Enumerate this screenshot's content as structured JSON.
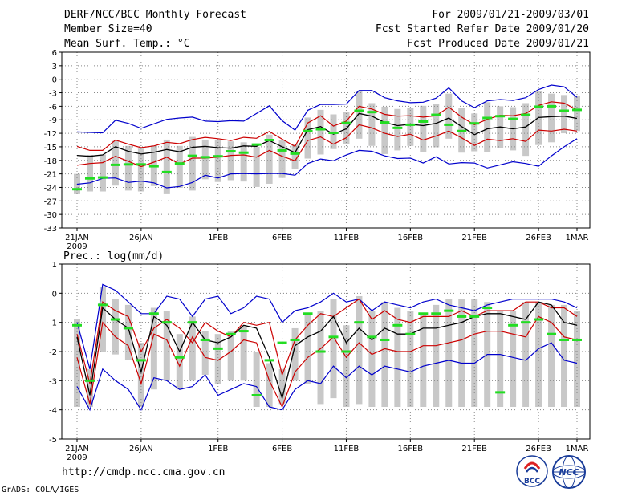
{
  "header": {
    "title": "DERF/NCC/BCC Monthly Forecast",
    "member": "Member Size=40",
    "variable": "Mean Surf. Temp.: °C",
    "period": "For 2009/01/21-2009/03/01",
    "started": "Fcst Started Refer Date 2009/01/20",
    "produced": "Fcst Produced Date 2009/01/21"
  },
  "footer": {
    "url": "http://cmdp.ncc.cma.gov.cn",
    "credit": "GrADS: COLA/IGES",
    "logo_bcc": "BCC",
    "logo_ncc": "NCC"
  },
  "colors": {
    "envelope": "#0000cc",
    "quartile": "#cc0000",
    "mean": "#000000",
    "box": "#c8c8c8",
    "marker": "#22dd22",
    "grid": "#888888"
  },
  "chart_data": [
    {
      "type": "line",
      "title": "Mean Surf. Temp.: °C",
      "ylabel": "°C",
      "ylim": [
        -33,
        6
      ],
      "yticks": [
        6,
        3,
        0,
        -3,
        -6,
        -9,
        -12,
        -15,
        -18,
        -21,
        -24,
        -27,
        -30,
        -33
      ],
      "x_labels": [
        {
          "day": 0,
          "text": "21JAN"
        },
        {
          "day": 5,
          "text": "26JAN"
        },
        {
          "day": 11,
          "text": "1FEB"
        },
        {
          "day": 16,
          "text": "6FEB"
        },
        {
          "day": 21,
          "text": "11FEB"
        },
        {
          "day": 26,
          "text": "16FEB"
        },
        {
          "day": 31,
          "text": "21FEB"
        },
        {
          "day": 36,
          "text": "26FEB"
        },
        {
          "day": 39,
          "text": "1MAR"
        }
      ],
      "year_label": "2009",
      "series": [
        {
          "name": "max",
          "values": [
            -11.7,
            -11.8,
            -11.9,
            -9.1,
            -9.8,
            -10.9,
            -9.9,
            -8.9,
            -8.6,
            -8.4,
            -9.3,
            -9.4,
            -9.2,
            -9.3,
            -7.6,
            -5.9,
            -9.2,
            -11.3,
            -6.9,
            -5.6,
            -5.6,
            -5.5,
            -2.5,
            -2.5,
            -4.1,
            -4.8,
            -5.2,
            -5.1,
            -4.2,
            -1.9,
            -4.8,
            -6.3,
            -4.8,
            -4.5,
            -4.7,
            -4.1,
            -2.3,
            -1.3,
            -1.7,
            -4.0
          ]
        },
        {
          "name": "upper",
          "values": [
            -14.9,
            -15.8,
            -15.8,
            -13.5,
            -14.4,
            -15.2,
            -14.8,
            -14.0,
            -14.3,
            -13.4,
            -12.9,
            -13.2,
            -13.6,
            -12.9,
            -13.1,
            -11.6,
            -13.3,
            -14.9,
            -9.7,
            -8.1,
            -10.4,
            -9.3,
            -6.0,
            -6.6,
            -7.8,
            -8.2,
            -8.1,
            -8.4,
            -8.1,
            -6.2,
            -8.4,
            -10.1,
            -8.9,
            -8.0,
            -8.1,
            -7.6,
            -5.8,
            -5.0,
            -5.3,
            -6.8
          ]
        },
        {
          "name": "mean",
          "values": [
            -16.9,
            -17.1,
            -16.8,
            -15.0,
            -16.0,
            -16.6,
            -16.2,
            -15.6,
            -16.1,
            -15.1,
            -14.9,
            -15.2,
            -15.3,
            -14.8,
            -14.9,
            -13.6,
            -15.0,
            -16.3,
            -11.2,
            -10.5,
            -12.2,
            -11.0,
            -7.6,
            -8.2,
            -9.6,
            -10.3,
            -10.0,
            -10.3,
            -9.8,
            -8.6,
            -10.5,
            -12.3,
            -11.0,
            -10.6,
            -11.0,
            -10.6,
            -8.5,
            -8.3,
            -8.2,
            -8.7
          ]
        },
        {
          "name": "lower",
          "values": [
            -19.1,
            -18.7,
            -18.5,
            -17.1,
            -18.2,
            -19.4,
            -18.4,
            -17.3,
            -18.8,
            -17.5,
            -17.5,
            -17.3,
            -16.9,
            -16.8,
            -17.3,
            -15.8,
            -17.1,
            -18.1,
            -13.6,
            -12.8,
            -14.4,
            -13.0,
            -10.1,
            -10.8,
            -12.0,
            -12.7,
            -12.2,
            -13.5,
            -12.6,
            -11.5,
            -13.0,
            -14.7,
            -13.3,
            -13.6,
            -13.2,
            -13.8,
            -11.3,
            -11.5,
            -11.1,
            -11.5
          ]
        },
        {
          "name": "min",
          "values": [
            -23.3,
            -23.0,
            -22.0,
            -21.9,
            -22.9,
            -22.6,
            -23.0,
            -24.1,
            -23.8,
            -22.9,
            -21.3,
            -21.9,
            -21.0,
            -20.9,
            -21.0,
            -20.9,
            -20.9,
            -21.3,
            -18.7,
            -17.7,
            -18.1,
            -16.8,
            -15.8,
            -16.0,
            -17.0,
            -17.6,
            -17.5,
            -18.6,
            -17.2,
            -18.8,
            -18.5,
            -18.6,
            -19.7,
            -19.0,
            -18.3,
            -18.7,
            -19.3,
            -17.0,
            -15.0,
            -13.2
          ]
        },
        {
          "name": "obs",
          "values": [
            -24.4,
            -22.0,
            -21.8,
            -19.0,
            -18.9,
            -18.9,
            -19.3,
            -20.6,
            -18.7,
            -17.0,
            -17.3,
            -17.1,
            -16.0,
            -16.3,
            -14.5,
            -13.5,
            -15.8,
            -16.5,
            -11.5,
            -11.1,
            -11.9,
            -9.7,
            -7.0,
            -7.3,
            -9.6,
            -10.8,
            -10.1,
            -9.4,
            -7.9,
            -10.1,
            -11.5,
            -9.8,
            -8.6,
            -8.2,
            -8.8,
            -7.9,
            -6.1,
            -6.0,
            -7.0,
            -6.8
          ]
        }
      ],
      "boxes": [
        [
          -25.5,
          -21.0
        ],
        [
          -24.9,
          -16.8
        ],
        [
          -24.9,
          -16.7
        ],
        [
          -23.6,
          -13.7
        ],
        [
          -24.7,
          -14.8
        ],
        [
          -24.9,
          -15.4
        ],
        [
          -23.7,
          -14.7
        ],
        [
          -25.5,
          -13.4
        ],
        [
          -24.1,
          -14.8
        ],
        [
          -24.7,
          -12.8
        ],
        [
          -22.2,
          -13.4
        ],
        [
          -22.8,
          -13.5
        ],
        [
          -22.4,
          -13.8
        ],
        [
          -22.7,
          -14.0
        ],
        [
          -23.9,
          -15.0
        ],
        [
          -23.2,
          -12.3
        ],
        [
          -21.9,
          -13.6
        ],
        [
          -20.0,
          -14.5
        ],
        [
          -17.6,
          -8.5
        ],
        [
          -16.7,
          -6.8
        ],
        [
          -15.5,
          -7.8
        ],
        [
          -14.4,
          -7.2
        ],
        [
          -13.2,
          -2.6
        ],
        [
          -14.8,
          -5.3
        ],
        [
          -16.6,
          -6.1
        ],
        [
          -15.8,
          -6.6
        ],
        [
          -14.8,
          -6.3
        ],
        [
          -16.1,
          -5.9
        ],
        [
          -15.1,
          -5.5
        ],
        [
          -13.2,
          -3.2
        ],
        [
          -16.3,
          -6.4
        ],
        [
          -16.0,
          -7.6
        ],
        [
          -16.2,
          -5.1
        ],
        [
          -15.2,
          -6.0
        ],
        [
          -15.8,
          -6.2
        ],
        [
          -17.0,
          -5.3
        ],
        [
          -14.6,
          -2.6
        ],
        [
          -14.0,
          -3.2
        ],
        [
          -12.0,
          -3.5
        ],
        [
          -11.5,
          -3.6
        ]
      ]
    },
    {
      "type": "line",
      "title": "Prec.: log(mm/d)",
      "ylabel": "log(mm/d)",
      "ylim": [
        -5,
        1
      ],
      "yticks": [
        1,
        0,
        -1,
        -2,
        -3,
        -4,
        -5
      ],
      "x_labels": [
        {
          "day": 0,
          "text": "21JAN"
        },
        {
          "day": 5,
          "text": "26JAN"
        },
        {
          "day": 11,
          "text": "1FEB"
        },
        {
          "day": 16,
          "text": "6FEB"
        },
        {
          "day": 21,
          "text": "11FEB"
        },
        {
          "day": 26,
          "text": "16FEB"
        },
        {
          "day": 31,
          "text": "21FEB"
        },
        {
          "day": 36,
          "text": "26FEB"
        },
        {
          "day": 39,
          "text": "1MAR"
        }
      ],
      "year_label": "2009",
      "series": [
        {
          "name": "max",
          "values": [
            -1.0,
            -2.6,
            0.3,
            0.1,
            -0.3,
            -0.7,
            -0.7,
            -0.1,
            -0.2,
            -0.8,
            -0.2,
            -0.1,
            -0.7,
            -0.5,
            -0.1,
            -0.2,
            -1.0,
            -0.6,
            -0.5,
            -0.3,
            0.0,
            -0.3,
            -0.2,
            -0.6,
            -0.3,
            -0.4,
            -0.5,
            -0.3,
            -0.2,
            -0.4,
            -0.5,
            -0.6,
            -0.4,
            -0.3,
            -0.2,
            -0.2,
            -0.2,
            -0.2,
            -0.3,
            -0.5
          ]
        },
        {
          "name": "upper",
          "values": [
            -1.4,
            -3.1,
            -0.3,
            -0.6,
            -0.8,
            -2.0,
            -1.2,
            -0.9,
            -1.2,
            -1.7,
            -1.0,
            -1.3,
            -1.5,
            -1.0,
            -1.1,
            -1.0,
            -2.8,
            -1.6,
            -1.1,
            -0.7,
            -0.8,
            -0.5,
            -0.2,
            -0.9,
            -0.6,
            -0.9,
            -1.0,
            -0.8,
            -0.8,
            -0.8,
            -0.6,
            -0.8,
            -0.6,
            -0.6,
            -0.6,
            -0.3,
            -0.3,
            -0.5,
            -0.5,
            -0.8
          ]
        },
        {
          "name": "mean",
          "values": [
            -1.5,
            -3.5,
            -0.5,
            -0.9,
            -1.2,
            -2.7,
            -0.8,
            -1.1,
            -2.0,
            -1.0,
            -1.6,
            -1.7,
            -1.5,
            -1.1,
            -1.2,
            -2.2,
            -3.6,
            -1.8,
            -1.5,
            -1.3,
            -0.8,
            -1.7,
            -1.2,
            -1.6,
            -1.2,
            -1.4,
            -1.4,
            -1.2,
            -1.2,
            -1.1,
            -1.0,
            -0.8,
            -0.7,
            -0.7,
            -0.8,
            -0.9,
            -0.3,
            -0.4,
            -1.0,
            -1.1
          ]
        },
        {
          "name": "lower",
          "values": [
            -2.2,
            -3.8,
            -1.0,
            -1.5,
            -1.8,
            -3.1,
            -1.4,
            -1.6,
            -2.5,
            -1.5,
            -2.2,
            -2.3,
            -2.0,
            -1.6,
            -1.7,
            -3.0,
            -3.9,
            -2.7,
            -2.2,
            -1.9,
            -1.5,
            -2.2,
            -1.7,
            -2.1,
            -1.9,
            -2.0,
            -2.0,
            -1.8,
            -1.8,
            -1.7,
            -1.6,
            -1.4,
            -1.3,
            -1.3,
            -1.4,
            -1.5,
            -0.8,
            -1.0,
            -1.5,
            -1.6
          ]
        },
        {
          "name": "min",
          "values": [
            -3.2,
            -4.0,
            -2.6,
            -3.0,
            -3.3,
            -4.0,
            -2.9,
            -3.0,
            -3.3,
            -3.2,
            -2.8,
            -3.5,
            -3.3,
            -3.1,
            -3.2,
            -3.9,
            -4.0,
            -3.3,
            -3.0,
            -3.1,
            -2.5,
            -2.9,
            -2.5,
            -2.8,
            -2.5,
            -2.6,
            -2.7,
            -2.5,
            -2.4,
            -2.3,
            -2.4,
            -2.4,
            -2.1,
            -2.1,
            -2.2,
            -2.3,
            -1.9,
            -1.7,
            -2.3,
            -2.4
          ]
        },
        {
          "name": "obs",
          "values": [
            -1.1,
            -3.0,
            -0.4,
            -0.9,
            -1.2,
            -2.3,
            -0.7,
            -1.0,
            -2.2,
            -1.0,
            -1.6,
            -1.9,
            -1.4,
            -1.3,
            -3.5,
            -2.3,
            -1.7,
            -1.6,
            -0.7,
            -2.0,
            -1.5,
            -2.0,
            -1.0,
            -1.5,
            -1.6,
            -1.1,
            -1.4,
            -0.7,
            -0.7,
            -0.6,
            -0.8,
            -0.8,
            -0.5,
            -3.4,
            -1.1,
            -1.0,
            -0.9,
            -1.4,
            -1.6,
            -1.6
          ]
        }
      ],
      "boxes": [
        [
          -3.9,
          -0.9
        ],
        [
          -3.9,
          -2.6
        ],
        [
          -2.0,
          0.2
        ],
        [
          -2.1,
          -0.2
        ],
        [
          -2.3,
          -0.4
        ],
        [
          -3.9,
          -1.7
        ],
        [
          -3.3,
          -0.5
        ],
        [
          -3.0,
          -0.6
        ],
        [
          -3.3,
          -1.4
        ],
        [
          -3.0,
          -0.8
        ],
        [
          -2.8,
          -1.3
        ],
        [
          -3.1,
          -1.4
        ],
        [
          -3.0,
          -1.3
        ],
        [
          -3.0,
          -1.1
        ],
        [
          -3.9,
          -2.0
        ],
        [
          -3.9,
          -2.4
        ],
        [
          -3.8,
          -2.6
        ],
        [
          -3.0,
          -1.2
        ],
        [
          -3.1,
          -0.7
        ],
        [
          -3.8,
          -0.6
        ],
        [
          -3.6,
          -0.2
        ],
        [
          -3.9,
          -1.1
        ],
        [
          -3.8,
          -0.1
        ],
        [
          -3.9,
          -0.6
        ],
        [
          -3.9,
          -0.3
        ],
        [
          -3.9,
          -0.5
        ],
        [
          -3.9,
          -0.6
        ],
        [
          -3.9,
          -0.7
        ],
        [
          -3.9,
          -0.4
        ],
        [
          -3.9,
          -0.2
        ],
        [
          -3.9,
          -0.2
        ],
        [
          -3.9,
          -0.2
        ],
        [
          -3.9,
          -0.3
        ],
        [
          -3.9,
          -0.6
        ],
        [
          -3.9,
          -0.6
        ],
        [
          -3.9,
          -0.3
        ],
        [
          -3.9,
          -0.3
        ],
        [
          -3.9,
          -0.4
        ],
        [
          -3.9,
          -0.4
        ],
        [
          -3.9,
          -0.6
        ]
      ]
    }
  ]
}
